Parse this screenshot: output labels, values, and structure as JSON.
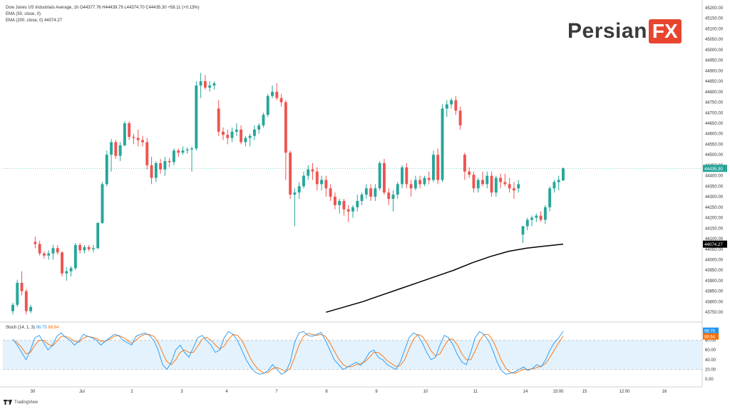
{
  "legend": {
    "title_line": "Dow Jones US Industrials Average, 1h  O44377.76 H44439.79 L44374.70 C44435.30 +58.11 (+0.13%)",
    "ema50": "EMA (50, close, 0)",
    "ema200": "EMA (200, close, 0)  44074.27"
  },
  "stoch_legend": {
    "label": "Stoch (14, 1, 3)",
    "k": "98.75",
    "d": "88.64"
  },
  "logo": {
    "text": "Persian",
    "badge": "FX"
  },
  "footer": {
    "brand": "TradingView"
  },
  "colors": {
    "up": "#26a69a",
    "down": "#ef5350",
    "ema": "#000000",
    "k_line": "#2196f3",
    "d_line": "#ff6d00",
    "band": "#e3f2fd",
    "price_tag": "#26a69a",
    "ema_tag": "#000000"
  },
  "chart_data": [
    {
      "type": "candlestick",
      "title": "Dow Jones US Industrials Average, 1h",
      "ylim": [
        43720,
        45210
      ],
      "y_ticks": [
        "45200.00",
        "45150.00",
        "45100.00",
        "45050.00",
        "45000.00",
        "44950.00",
        "44900.00",
        "44850.00",
        "44800.00",
        "44750.00",
        "44700.00",
        "44650.00",
        "44600.00",
        "44550.00",
        "44500.00",
        "44450.00",
        "44400.00",
        "44350.00",
        "44300.00",
        "44250.00",
        "44200.00",
        "44150.00",
        "44100.00",
        "44050.00",
        "44000.00",
        "43950.00",
        "43900.00",
        "43850.00",
        "43800.00",
        "43750.00"
      ],
      "x_labels": [
        "30",
        "Jul",
        "2",
        "3",
        "4",
        "7",
        "8",
        "9",
        "10",
        "11",
        "14",
        "15:00",
        "15",
        "12:00",
        "16"
      ],
      "last_price": 44435.3,
      "last_price_label": "44435.30",
      "ema200_value": 44074.27,
      "ema200_label": "44074.27",
      "candles": [
        [
          43755,
          43795,
          43740,
          43785
        ],
        [
          43785,
          43905,
          43775,
          43890
        ],
        [
          43890,
          43945,
          43830,
          43850
        ],
        [
          43850,
          43860,
          43740,
          43755
        ],
        [
          43755,
          43785,
          43745,
          43775
        ],
        [
          44085,
          44110,
          44055,
          44075
        ],
        [
          44075,
          44090,
          44020,
          44030
        ],
        [
          44030,
          44040,
          44005,
          44020
        ],
        [
          44020,
          44045,
          44000,
          44030
        ],
        [
          44030,
          44070,
          44000,
          44055
        ],
        [
          44055,
          44070,
          44025,
          44035
        ],
        [
          44035,
          44040,
          43920,
          43935
        ],
        [
          43935,
          43965,
          43900,
          43945
        ],
        [
          43945,
          43970,
          43920,
          43960
        ],
        [
          43960,
          44080,
          43950,
          44070
        ],
        [
          44070,
          44080,
          44030,
          44045
        ],
        [
          44045,
          44070,
          44030,
          44060
        ],
        [
          44060,
          44070,
          44040,
          44050
        ],
        [
          44050,
          44070,
          44035,
          44055
        ],
        [
          44055,
          44180,
          44050,
          44175
        ],
        [
          44175,
          44370,
          44170,
          44360
        ],
        [
          44360,
          44520,
          44350,
          44500
        ],
        [
          44500,
          44575,
          44420,
          44560
        ],
        [
          44560,
          44570,
          44480,
          44495
        ],
        [
          44495,
          44560,
          44470,
          44545
        ],
        [
          44545,
          44660,
          44540,
          44650
        ],
        [
          44650,
          44660,
          44570,
          44585
        ],
        [
          44585,
          44600,
          44550,
          44580
        ],
        [
          44580,
          44620,
          44540,
          44570
        ],
        [
          44570,
          44590,
          44540,
          44560
        ],
        [
          44560,
          44580,
          44430,
          44450
        ],
        [
          44450,
          44490,
          44360,
          44390
        ],
        [
          44390,
          44470,
          44370,
          44460
        ],
        [
          44460,
          44480,
          44410,
          44430
        ],
        [
          44430,
          44490,
          44400,
          44470
        ],
        [
          44470,
          44485,
          44440,
          44465
        ],
        [
          44465,
          44530,
          44450,
          44520
        ],
        [
          44520,
          44530,
          44490,
          44510
        ],
        [
          44510,
          44540,
          44500,
          44520
        ],
        [
          44520,
          44535,
          44505,
          44525
        ],
        [
          44525,
          44540,
          44420,
          44530
        ],
        [
          44530,
          44850,
          44520,
          44830
        ],
        [
          44830,
          44890,
          44770,
          44850
        ],
        [
          44850,
          44880,
          44810,
          44820
        ],
        [
          44820,
          44850,
          44800,
          44830
        ],
        [
          44830,
          44850,
          44810,
          44840
        ],
        [
          44720,
          44760,
          44590,
          44610
        ],
        [
          44610,
          44630,
          44570,
          44595
        ],
        [
          44595,
          44620,
          44550,
          44580
        ],
        [
          44580,
          44630,
          44560,
          44610
        ],
        [
          44610,
          44650,
          44590,
          44620
        ],
        [
          44620,
          44640,
          44550,
          44560
        ],
        [
          44560,
          44590,
          44540,
          44580
        ],
        [
          44580,
          44600,
          44540,
          44590
        ],
        [
          44590,
          44640,
          44570,
          44620
        ],
        [
          44620,
          44650,
          44600,
          44640
        ],
        [
          44640,
          44700,
          44630,
          44690
        ],
        [
          44690,
          44790,
          44680,
          44780
        ],
        [
          44780,
          44830,
          44770,
          44800
        ],
        [
          44800,
          44840,
          44760,
          44770
        ],
        [
          44770,
          44790,
          44730,
          44750
        ],
        [
          44750,
          44760,
          44380,
          44510
        ],
        [
          44510,
          44520,
          44290,
          44310
        ],
        [
          44310,
          44340,
          44160,
          44320
        ],
        [
          44320,
          44370,
          44290,
          44350
        ],
        [
          44350,
          44420,
          44340,
          44400
        ],
        [
          44400,
          44450,
          44380,
          44430
        ],
        [
          44430,
          44460,
          44380,
          44420
        ],
        [
          44420,
          44440,
          44330,
          44360
        ],
        [
          44360,
          44400,
          44330,
          44380
        ],
        [
          44380,
          44400,
          44300,
          44340
        ],
        [
          44340,
          44360,
          44280,
          44300
        ],
        [
          44300,
          44320,
          44240,
          44260
        ],
        [
          44260,
          44290,
          44220,
          44280
        ],
        [
          44280,
          44290,
          44210,
          44240
        ],
        [
          44240,
          44260,
          44180,
          44230
        ],
        [
          44230,
          44260,
          44200,
          44250
        ],
        [
          44250,
          44310,
          44230,
          44280
        ],
        [
          44280,
          44320,
          44260,
          44310
        ],
        [
          44310,
          44360,
          44290,
          44340
        ],
        [
          44340,
          44360,
          44280,
          44300
        ],
        [
          44300,
          44360,
          44280,
          44340
        ],
        [
          44340,
          44470,
          44330,
          44460
        ],
        [
          44460,
          44480,
          44310,
          44320
        ],
        [
          44320,
          44340,
          44260,
          44290
        ],
        [
          44290,
          44330,
          44230,
          44310
        ],
        [
          44310,
          44370,
          44290,
          44360
        ],
        [
          44360,
          44450,
          44340,
          44440
        ],
        [
          44440,
          44460,
          44340,
          44360
        ],
        [
          44360,
          44380,
          44300,
          44340
        ],
        [
          44340,
          44400,
          44330,
          44380
        ],
        [
          44380,
          44400,
          44340,
          44360
        ],
        [
          44360,
          44400,
          44350,
          44390
        ],
        [
          44390,
          44420,
          44360,
          44380
        ],
        [
          44380,
          44520,
          44370,
          44500
        ],
        [
          44500,
          44530,
          44360,
          44380
        ],
        [
          44380,
          44740,
          44370,
          44720
        ],
        [
          44720,
          44760,
          44680,
          44740
        ],
        [
          44740,
          44770,
          44720,
          44760
        ],
        [
          44760,
          44780,
          44690,
          44710
        ],
        [
          44710,
          44730,
          44620,
          44640
        ],
        [
          44500,
          44510,
          44380,
          44420
        ],
        [
          44420,
          44440,
          44390,
          44405
        ],
        [
          44405,
          44420,
          44320,
          44340
        ],
        [
          44340,
          44390,
          44320,
          44380
        ],
        [
          44380,
          44420,
          44350,
          44360
        ],
        [
          44360,
          44420,
          44340,
          44400
        ],
        [
          44400,
          44420,
          44300,
          44320
        ],
        [
          44320,
          44400,
          44300,
          44390
        ],
        [
          44390,
          44410,
          44340,
          44370
        ],
        [
          44370,
          44410,
          44350,
          44360
        ],
        [
          44360,
          44390,
          44320,
          44340
        ],
        [
          44340,
          44370,
          44290,
          44330
        ],
        [
          44340,
          44380,
          44320,
          44360
        ],
        [
          44120,
          44160,
          44080,
          44160
        ],
        [
          44160,
          44200,
          44140,
          44190
        ],
        [
          44190,
          44210,
          44160,
          44200
        ],
        [
          44200,
          44220,
          44180,
          44210
        ],
        [
          44210,
          44230,
          44180,
          44190
        ],
        [
          44190,
          44260,
          44170,
          44250
        ],
        [
          44250,
          44350,
          44230,
          44340
        ],
        [
          44340,
          44380,
          44320,
          44370
        ],
        [
          44370,
          44400,
          44330,
          44380
        ],
        [
          44377.76,
          44439.79,
          44374.7,
          44435.3
        ]
      ],
      "candle_sessions": [
        5,
        5,
        5,
        5,
        5,
        10,
        10,
        10,
        10,
        10,
        10,
        10,
        10,
        10,
        10,
        10,
        10,
        10,
        10,
        10,
        10,
        10,
        10,
        10,
        10,
        10,
        10,
        10,
        10,
        10,
        10,
        10,
        10,
        10,
        10,
        10,
        10,
        10,
        10,
        10,
        10,
        10,
        10,
        10,
        10,
        10,
        10,
        10,
        10,
        10,
        10,
        10,
        10,
        10,
        10,
        10,
        10,
        10,
        10,
        10,
        10,
        10,
        10,
        10,
        10,
        10,
        10,
        10,
        10,
        10,
        10,
        10,
        10,
        10,
        10,
        10,
        10,
        10,
        10,
        10,
        10,
        10,
        10,
        10,
        10,
        10,
        10,
        10,
        10,
        10,
        10,
        10,
        10,
        10,
        10,
        10,
        10,
        10,
        10,
        10,
        10,
        10,
        10,
        10,
        10,
        10,
        10,
        10,
        10,
        10,
        10,
        10,
        10,
        10,
        10,
        10,
        10,
        10,
        10,
        10,
        10,
        10,
        10,
        10
      ],
      "ema200": [
        [
          43750,
          -1
        ],
        [
          43775,
          0
        ],
        [
          43800,
          0
        ],
        [
          43830,
          0
        ],
        [
          43860,
          0
        ],
        [
          43890,
          0
        ],
        [
          43920,
          0
        ],
        [
          43950,
          0
        ],
        [
          43985,
          0
        ],
        [
          44015,
          0
        ],
        [
          44040,
          0
        ],
        [
          44055,
          0
        ],
        [
          44065,
          0
        ],
        [
          44074.27,
          0
        ]
      ]
    },
    {
      "type": "line",
      "title": "Stoch (14, 1, 3)",
      "ylim": [
        -10,
        110
      ],
      "y_ticks": [
        "80.00",
        "60.00",
        "40.00",
        "20.00",
        "0.00"
      ],
      "bands": [
        20,
        80
      ],
      "k_last": 98.75,
      "d_last": 88.64,
      "k": [
        82,
        70,
        55,
        40,
        60,
        85,
        90,
        75,
        60,
        70,
        88,
        95,
        85,
        80,
        70,
        78,
        92,
        88,
        85,
        80,
        70,
        78,
        85,
        92,
        90,
        80,
        75,
        70,
        88,
        92,
        95,
        90,
        80,
        60,
        30,
        20,
        35,
        60,
        70,
        55,
        45,
        65,
        85,
        90,
        80,
        70,
        55,
        60,
        85,
        98,
        92,
        80,
        60,
        40,
        25,
        15,
        10,
        12,
        18,
        30,
        20,
        10,
        15,
        35,
        75,
        95,
        98,
        90,
        88,
        92,
        96,
        80,
        60,
        40,
        30,
        20,
        25,
        30,
        35,
        28,
        40,
        55,
        60,
        45,
        40,
        30,
        25,
        20,
        35,
        60,
        85,
        95,
        90,
        75,
        55,
        40,
        45,
        70,
        90,
        85,
        70,
        50,
        35,
        30,
        55,
        85,
        98,
        92,
        80,
        60,
        35,
        18,
        10,
        12,
        15,
        20,
        25,
        18,
        22,
        30,
        25,
        40,
        60,
        75,
        85,
        98.75
      ],
      "d": [
        80,
        75,
        65,
        52,
        55,
        70,
        80,
        80,
        72,
        68,
        78,
        88,
        88,
        84,
        78,
        76,
        84,
        88,
        86,
        84,
        78,
        78,
        82,
        88,
        90,
        86,
        80,
        74,
        80,
        88,
        92,
        92,
        88,
        76,
        55,
        36,
        30,
        40,
        55,
        60,
        55,
        55,
        68,
        82,
        86,
        80,
        70,
        62,
        68,
        82,
        92,
        90,
        80,
        62,
        42,
        28,
        18,
        13,
        14,
        22,
        24,
        20,
        16,
        22,
        45,
        70,
        88,
        94,
        92,
        90,
        92,
        88,
        75,
        58,
        42,
        30,
        25,
        26,
        30,
        32,
        36,
        45,
        55,
        55,
        48,
        38,
        32,
        26,
        28,
        40,
        62,
        82,
        92,
        88,
        75,
        58,
        48,
        52,
        68,
        82,
        82,
        70,
        52,
        40,
        40,
        58,
        78,
        92,
        92,
        80,
        60,
        38,
        22,
        14,
        12,
        16,
        20,
        20,
        21,
        24,
        27,
        32,
        45,
        60,
        75,
        88.64
      ]
    }
  ]
}
